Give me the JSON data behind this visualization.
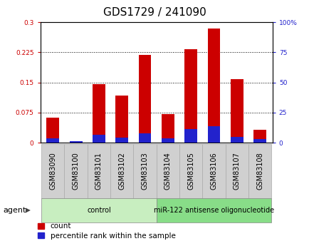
{
  "title": "GDS1729 / 241090",
  "samples": [
    "GSM83090",
    "GSM83100",
    "GSM83101",
    "GSM83102",
    "GSM83103",
    "GSM83104",
    "GSM83105",
    "GSM83106",
    "GSM83107",
    "GSM83108"
  ],
  "count_values": [
    0.063,
    0.002,
    0.145,
    0.118,
    0.218,
    0.072,
    0.232,
    0.285,
    0.158,
    0.032
  ],
  "percentile_values": [
    3.5,
    1.2,
    6.5,
    4.0,
    8.0,
    3.8,
    11.5,
    13.5,
    5.0,
    3.2
  ],
  "groups": [
    {
      "label": "control",
      "start": 0,
      "end": 5,
      "color": "#c8eec0"
    },
    {
      "label": "miR-122 antisense oligonucleotide",
      "start": 5,
      "end": 10,
      "color": "#88dd88"
    }
  ],
  "ylim_left": [
    0,
    0.3
  ],
  "ylim_right": [
    0,
    100
  ],
  "yticks_left": [
    0,
    0.075,
    0.15,
    0.225,
    0.3
  ],
  "yticks_right": [
    0,
    25,
    50,
    75,
    100
  ],
  "bar_color_red": "#cc0000",
  "bar_color_blue": "#2222cc",
  "bar_width": 0.55,
  "title_fontsize": 11,
  "tick_fontsize": 6.5,
  "label_fontsize": 7.0,
  "legend_fontsize": 7.5,
  "grid_color": "#000000",
  "left_tick_color": "#cc0000",
  "right_tick_color": "#2222cc",
  "xlim": [
    -0.55,
    9.55
  ]
}
